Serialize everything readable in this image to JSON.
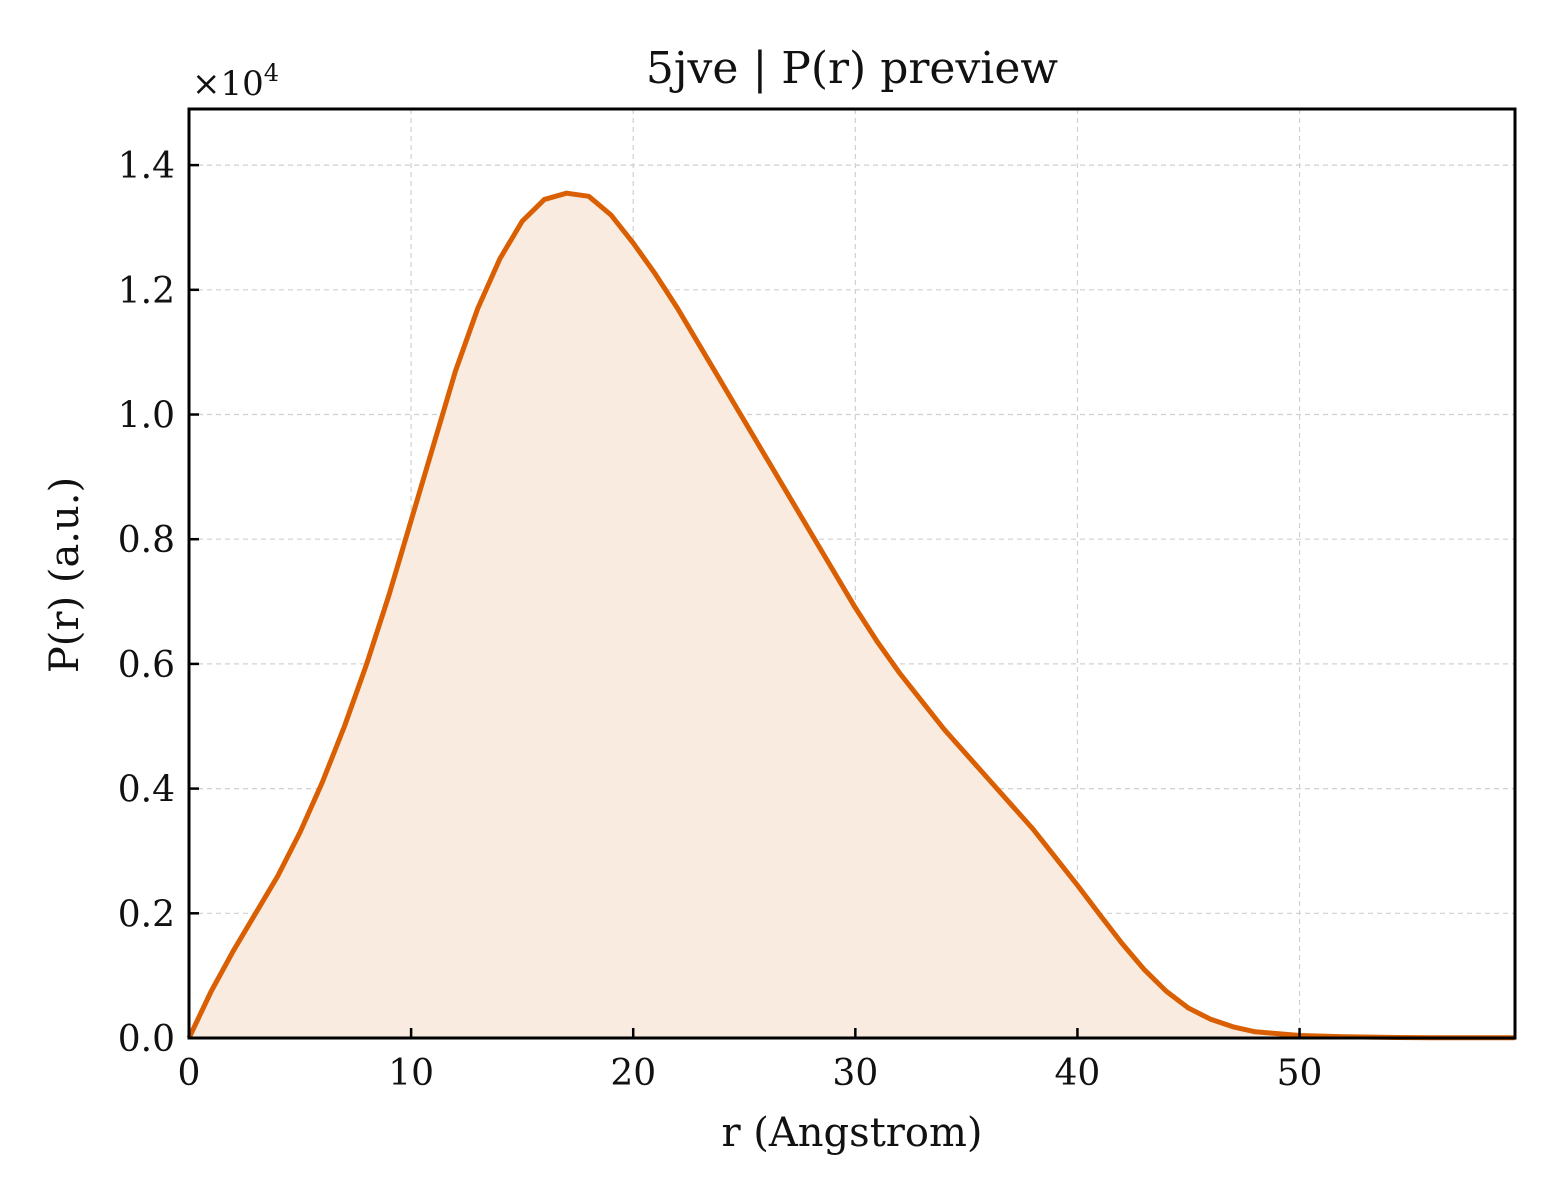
{
  "chart_data": {
    "type": "area",
    "title": "5jve | P(r) preview",
    "xlabel": "r (Angstrom)",
    "ylabel": "P(r) (a.u.)",
    "y_multiplier_base": "×10",
    "y_multiplier_exp": "4",
    "xlim": [
      0,
      59.7
    ],
    "ylim": [
      0,
      1.49
    ],
    "xticks": [
      0,
      10,
      20,
      30,
      40,
      50
    ],
    "xtick_labels": [
      "0",
      "10",
      "20",
      "30",
      "40",
      "50"
    ],
    "yticks": [
      0,
      0.2,
      0.4,
      0.6,
      0.8,
      1.0,
      1.2,
      1.4
    ],
    "ytick_labels": [
      "0.0",
      "0.2",
      "0.4",
      "0.6",
      "0.8",
      "1.0",
      "1.2",
      "1.4"
    ],
    "grid": true,
    "series": [
      {
        "line_color": "#d95f02",
        "fill_color": "#f9ebe0",
        "x": [
          0,
          1,
          2,
          3,
          4,
          5,
          6,
          7,
          8,
          9,
          10,
          11,
          12,
          13,
          14,
          15,
          16,
          17,
          18,
          19,
          20,
          21,
          22,
          23,
          24,
          25,
          26,
          27,
          28,
          29,
          30,
          31,
          32,
          33,
          34,
          35,
          36,
          37,
          38,
          39,
          40,
          41,
          42,
          43,
          44,
          45,
          46,
          47,
          48,
          49,
          50,
          52,
          54,
          56,
          58,
          59.7
        ],
        "y": [
          0.0,
          0.075,
          0.14,
          0.2,
          0.26,
          0.33,
          0.41,
          0.5,
          0.6,
          0.71,
          0.83,
          0.95,
          1.07,
          1.17,
          1.25,
          1.31,
          1.345,
          1.355,
          1.35,
          1.32,
          1.275,
          1.225,
          1.17,
          1.11,
          1.05,
          0.99,
          0.93,
          0.87,
          0.81,
          0.75,
          0.69,
          0.635,
          0.585,
          0.54,
          0.495,
          0.455,
          0.415,
          0.375,
          0.335,
          0.29,
          0.245,
          0.198,
          0.152,
          0.11,
          0.075,
          0.048,
          0.03,
          0.018,
          0.01,
          0.007,
          0.004,
          0.002,
          0.001,
          0.0005,
          0.0003,
          0.0003
        ]
      }
    ]
  }
}
